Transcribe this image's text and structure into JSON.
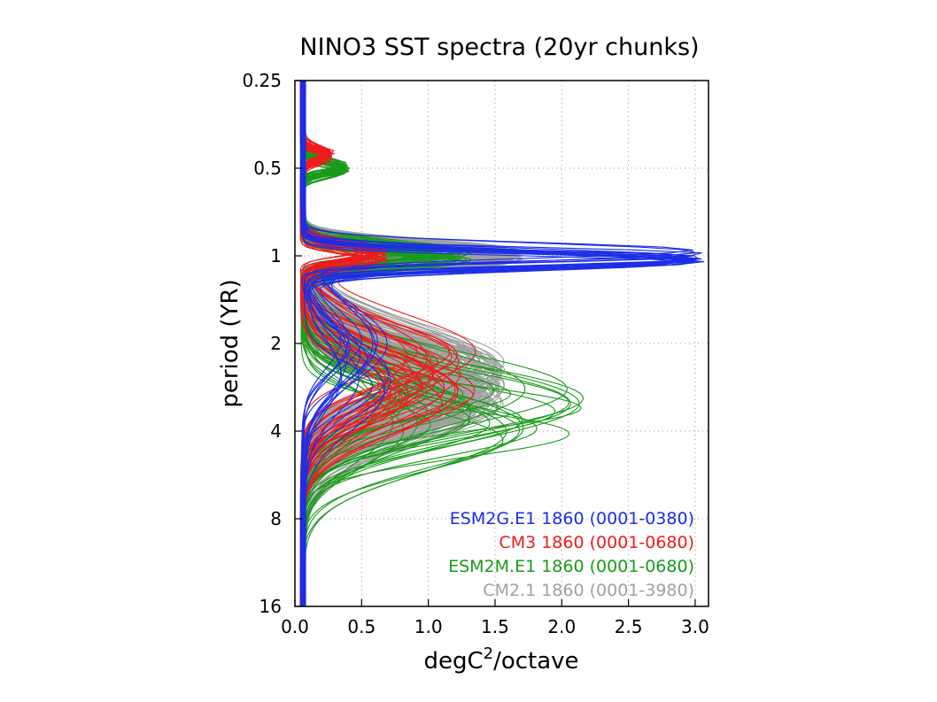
{
  "chart_data": {
    "type": "line",
    "title": "NINO3 SST spectra (20yr chunks)",
    "xlabel": "degC",
    "xlabel_sup": "2",
    "xlabel_suffix": "/octave",
    "ylabel": "period (YR)",
    "xlim": [
      0.0,
      3.1
    ],
    "ylim": [
      0.25,
      16
    ],
    "y_scale": "log2",
    "y_inverted": true,
    "grid": "dotted",
    "x_ticks": [
      "0.0",
      "0.5",
      "1.0",
      "1.5",
      "2.0",
      "2.5",
      "3.0"
    ],
    "y_ticks": [
      "0.25",
      "0.5",
      "1",
      "2",
      "4",
      "8",
      "16"
    ],
    "legend_position": "bottom-right",
    "legend": [
      {
        "label": "ESM2G.E1 1860 (0001-0380)",
        "color": "#1c2ee6"
      },
      {
        "label": "CM3 1860 (0001-0680)",
        "color": "#ee1c1c"
      },
      {
        "label": "ESM2M.E1 1860 (0001-0680)",
        "color": "#1a9a1a"
      },
      {
        "label": "CM2.1 1860 (0001-3980)",
        "color": "#a0a0a0"
      }
    ],
    "series": [
      {
        "color": "#a0a0a0",
        "curves": 199,
        "peaks": [
          {
            "period": 1.0,
            "amp": 1.4,
            "amp_spread": 0.5,
            "width": 0.15
          },
          {
            "period": 2.8,
            "amp": 1.2,
            "amp_spread": 0.6,
            "width": 0.6
          }
        ]
      },
      {
        "color": "#1a9a1a",
        "curves": 34,
        "peaks": [
          {
            "period": 0.5,
            "amp": 0.32,
            "amp_spread": 0.05,
            "width": 0.1
          },
          {
            "period": 1.0,
            "amp": 1.05,
            "amp_spread": 0.45,
            "width": 0.15
          },
          {
            "period": 3.5,
            "amp": 1.3,
            "amp_spread": 1.6,
            "width": 0.6
          }
        ]
      },
      {
        "color": "#ee1c1c",
        "curves": 34,
        "peaks": [
          {
            "period": 0.45,
            "amp": 0.2,
            "amp_spread": 0.05,
            "width": 0.1
          },
          {
            "period": 1.0,
            "amp": 0.55,
            "amp_spread": 0.2,
            "width": 0.15
          },
          {
            "period": 2.6,
            "amp": 0.95,
            "amp_spread": 0.7,
            "width": 0.6
          }
        ]
      },
      {
        "color": "#1c2ee6",
        "curves": 19,
        "peaks": [
          {
            "period": 1.0,
            "amp": 2.95,
            "amp_spread": 0.08,
            "width": 0.15
          },
          {
            "period": 2.4,
            "amp": 0.45,
            "amp_spread": 0.4,
            "width": 0.6
          }
        ]
      }
    ]
  }
}
